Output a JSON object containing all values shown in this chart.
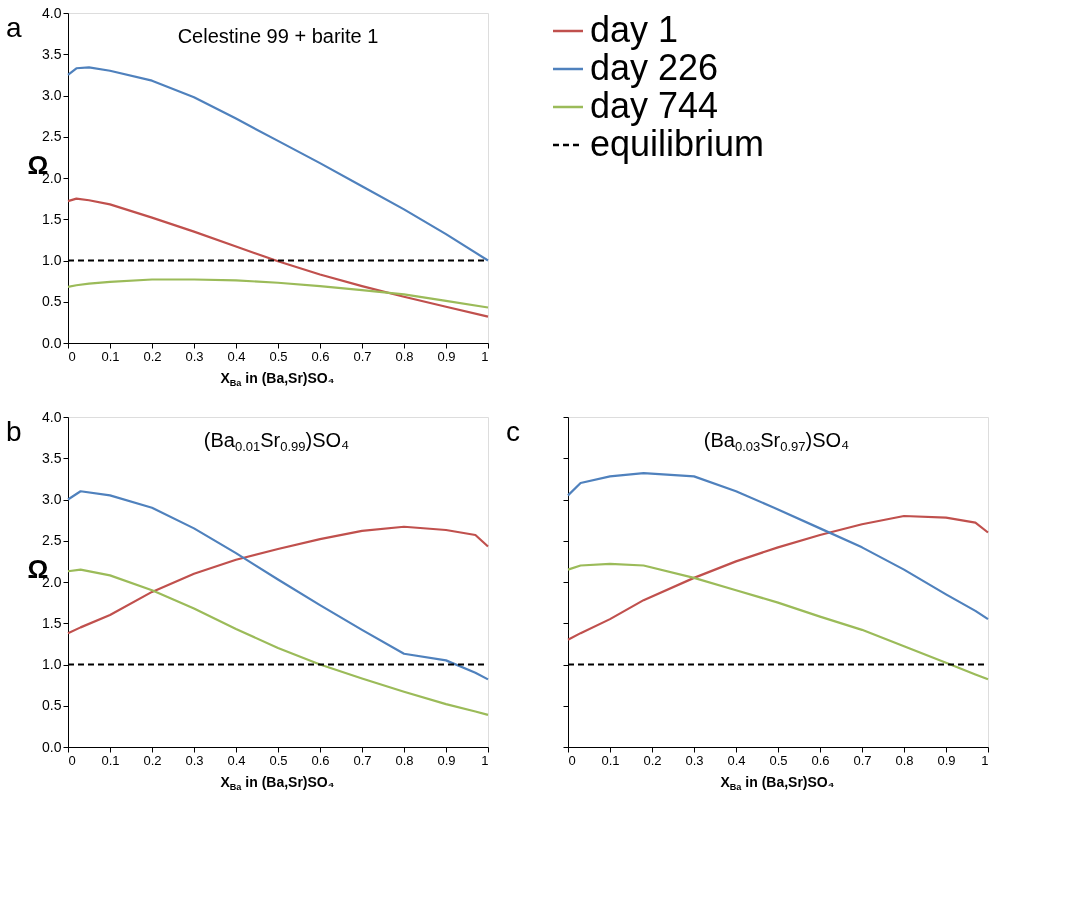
{
  "chart_data": [
    {
      "type": "line",
      "title": "Celestine 99 + barite 1",
      "annotations": [
        "a"
      ],
      "xlabel": "X$_{Ba}$ in (Ba,Sr)SO₄",
      "ylabel": "Ω",
      "legend": "right",
      "grid": false,
      "marker": "none",
      "line_style": "solid",
      "xlim": [
        0,
        1
      ],
      "xticks": [
        0,
        0.1,
        0.2,
        0.3,
        0.4,
        0.5,
        0.6,
        0.7,
        0.8,
        0.9,
        1
      ],
      "ylim": [
        0,
        4
      ],
      "yticks": [
        {
          "value": 0,
          "label": "0.0"
        },
        0.5,
        {
          "value": 1,
          "label": "1.0"
        },
        1.5,
        {
          "value": 2,
          "label": "2.0"
        },
        2.5,
        {
          "value": 3,
          "label": "3.0"
        },
        3.5,
        {
          "value": 4,
          "label": "4.0"
        }
      ],
      "x": [
        0,
        0.02,
        0.05,
        0.1,
        0.2,
        0.3,
        0.4,
        0.5,
        0.6,
        0.7,
        0.8,
        0.9,
        1
      ],
      "series": [
        {
          "name": "day 1",
          "color": "#c0504d",
          "values": [
            1.72,
            1.75,
            1.73,
            1.68,
            1.52,
            1.35,
            1.17,
            0.99,
            0.83,
            0.69,
            0.56,
            0.44,
            0.32
          ]
        },
        {
          "name": "day 226",
          "color": "#4f81bd",
          "values": [
            3.25,
            3.33,
            3.34,
            3.3,
            3.18,
            2.98,
            2.72,
            2.45,
            2.18,
            1.9,
            1.62,
            1.32,
            1.0
          ]
        },
        {
          "name": "day 744",
          "color": "#9bbb59",
          "values": [
            0.68,
            0.7,
            0.72,
            0.74,
            0.77,
            0.77,
            0.76,
            0.73,
            0.69,
            0.64,
            0.59,
            0.51,
            0.43
          ]
        }
      ],
      "ref_lines": [
        {
          "axis": "y",
          "value": 1,
          "label": "equilibrium",
          "color": "#000000",
          "line_style": "dashed"
        }
      ]
    },
    {
      "type": "line",
      "title": "(Ba$_{0.01}$Sr$_{0.99}$)SO₄",
      "annotations": [
        "b"
      ],
      "xlabel": "X$_{Ba}$ in (Ba,Sr)SO₄",
      "ylabel": "Ω",
      "grid": false,
      "marker": "none",
      "line_style": "solid",
      "xlim": [
        0,
        1
      ],
      "xticks": [
        0,
        0.1,
        0.2,
        0.3,
        0.4,
        0.5,
        0.6,
        0.7,
        0.8,
        0.9,
        1
      ],
      "ylim": [
        0,
        4
      ],
      "yticks": [
        {
          "value": 0,
          "label": "0.0"
        },
        0.5,
        {
          "value": 1,
          "label": "1.0"
        },
        1.5,
        {
          "value": 2,
          "label": "2.0"
        },
        2.5,
        {
          "value": 3,
          "label": "3.0"
        },
        3.5,
        {
          "value": 4,
          "label": "4.0"
        }
      ],
      "x": [
        0,
        0.03,
        0.1,
        0.2,
        0.3,
        0.4,
        0.5,
        0.6,
        0.7,
        0.8,
        0.9,
        0.97,
        1
      ],
      "series": [
        {
          "color": "#c0504d",
          "values": [
            1.38,
            1.45,
            1.6,
            1.88,
            2.1,
            2.27,
            2.4,
            2.52,
            2.62,
            2.67,
            2.63,
            2.57,
            2.43
          ]
        },
        {
          "color": "#4f81bd",
          "values": [
            3.0,
            3.1,
            3.05,
            2.9,
            2.65,
            2.35,
            2.03,
            1.72,
            1.42,
            1.13,
            1.05,
            0.9,
            0.82
          ]
        },
        {
          "color": "#9bbb59",
          "values": [
            2.13,
            2.15,
            2.08,
            1.9,
            1.68,
            1.43,
            1.2,
            1.0,
            0.83,
            0.67,
            0.52,
            0.43,
            0.39
          ]
        }
      ],
      "ref_lines": [
        {
          "axis": "y",
          "value": 1,
          "color": "#000000",
          "line_style": "dashed"
        }
      ]
    },
    {
      "type": "line",
      "title": "(Ba$_{0.03}$Sr$_{0.97}$)SO₄",
      "annotations": [
        "c"
      ],
      "xlabel": "X$_{Ba}$ in (Ba,Sr)SO₄",
      "grid": false,
      "marker": "none",
      "line_style": "solid",
      "tick_labels": "x",
      "xlim": [
        0,
        1
      ],
      "xticks": [
        0,
        0.1,
        0.2,
        0.3,
        0.4,
        0.5,
        0.6,
        0.7,
        0.8,
        0.9,
        1
      ],
      "ylim": [
        0,
        4
      ],
      "yticks": [
        {
          "value": 0,
          "label": null
        },
        {
          "value": 0.5,
          "label": null
        },
        {
          "value": 1,
          "label": null
        },
        {
          "value": 1.5,
          "label": null
        },
        {
          "value": 2,
          "label": null
        },
        {
          "value": 2.5,
          "label": null
        },
        {
          "value": 3,
          "label": null
        },
        {
          "value": 3.5,
          "label": null
        },
        {
          "value": 4,
          "label": null
        }
      ],
      "x": [
        0,
        0.03,
        0.1,
        0.18,
        0.3,
        0.4,
        0.5,
        0.6,
        0.7,
        0.8,
        0.9,
        0.97,
        1
      ],
      "series": [
        {
          "color": "#c0504d",
          "values": [
            1.3,
            1.38,
            1.55,
            1.78,
            2.05,
            2.25,
            2.42,
            2.57,
            2.7,
            2.8,
            2.78,
            2.72,
            2.6
          ]
        },
        {
          "color": "#4f81bd",
          "values": [
            3.05,
            3.2,
            3.28,
            3.32,
            3.28,
            3.1,
            2.88,
            2.65,
            2.42,
            2.15,
            1.85,
            1.65,
            1.55
          ]
        },
        {
          "color": "#9bbb59",
          "values": [
            2.15,
            2.2,
            2.22,
            2.2,
            2.05,
            1.9,
            1.75,
            1.58,
            1.42,
            1.22,
            1.02,
            0.88,
            0.82
          ]
        }
      ],
      "ref_lines": [
        {
          "axis": "y",
          "value": 1,
          "color": "#000000",
          "line_style": "dashed"
        }
      ]
    }
  ]
}
